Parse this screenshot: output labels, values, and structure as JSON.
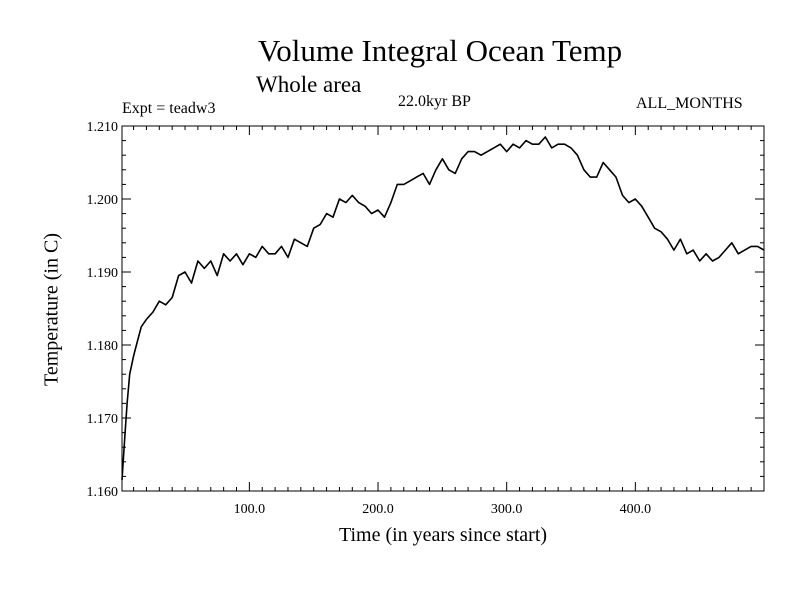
{
  "chart_data": {
    "type": "line",
    "title": "Volume Integral Ocean Temp",
    "subtitle": "Whole area",
    "annotations": {
      "left": "Expt = teadw3",
      "center": "22.0kyr BP",
      "right": "ALL_MONTHS"
    },
    "xlabel": "Time (in years since start)",
    "ylabel": "Temperature (in C)",
    "xlim": [
      1,
      500
    ],
    "ylim": [
      1.16,
      1.21
    ],
    "xticks": [
      100,
      200,
      300,
      400
    ],
    "xtick_labels": [
      "100.0",
      "200.0",
      "300.0",
      "400.0"
    ],
    "yticks": [
      1.16,
      1.17,
      1.18,
      1.19,
      1.2,
      1.21
    ],
    "ytick_labels": [
      "1.160",
      "1.170",
      "1.180",
      "1.190",
      "1.200",
      "1.210"
    ],
    "grid": false,
    "series": [
      {
        "name": "Volume Integral Ocean Temp",
        "color": "#000000",
        "x": [
          1,
          3,
          5,
          7,
          10,
          13,
          16,
          20,
          25,
          30,
          35,
          40,
          45,
          50,
          55,
          60,
          65,
          70,
          75,
          80,
          85,
          90,
          95,
          100,
          105,
          110,
          115,
          120,
          125,
          130,
          135,
          140,
          145,
          150,
          155,
          160,
          165,
          170,
          175,
          180,
          185,
          190,
          195,
          200,
          205,
          210,
          215,
          220,
          225,
          230,
          235,
          240,
          245,
          250,
          255,
          260,
          265,
          270,
          275,
          280,
          285,
          290,
          295,
          300,
          305,
          310,
          315,
          320,
          325,
          330,
          335,
          340,
          345,
          350,
          355,
          360,
          365,
          370,
          375,
          380,
          385,
          390,
          395,
          400,
          405,
          410,
          415,
          420,
          425,
          430,
          435,
          440,
          445,
          450,
          455,
          460,
          465,
          470,
          475,
          480,
          485,
          490,
          495,
          500
        ],
        "values": [
          1.1615,
          1.167,
          1.172,
          1.176,
          1.1785,
          1.1805,
          1.1825,
          1.1835,
          1.1845,
          1.186,
          1.1855,
          1.1865,
          1.1895,
          1.19,
          1.1885,
          1.1915,
          1.1905,
          1.1915,
          1.1895,
          1.1925,
          1.1915,
          1.1925,
          1.191,
          1.1925,
          1.192,
          1.1935,
          1.1925,
          1.1925,
          1.1935,
          1.192,
          1.1945,
          1.194,
          1.1935,
          1.196,
          1.1965,
          1.198,
          1.1975,
          1.2,
          1.1995,
          1.2005,
          1.1995,
          1.199,
          1.198,
          1.1985,
          1.1975,
          1.1995,
          1.202,
          1.202,
          1.2025,
          1.203,
          1.2035,
          1.202,
          1.204,
          1.2055,
          1.204,
          1.2035,
          1.2055,
          1.2065,
          1.2065,
          1.206,
          1.2065,
          1.207,
          1.2075,
          1.2065,
          1.2075,
          1.207,
          1.208,
          1.2075,
          1.2075,
          1.2085,
          1.207,
          1.2075,
          1.2075,
          1.207,
          1.206,
          1.204,
          1.203,
          1.203,
          1.205,
          1.204,
          1.203,
          1.2005,
          1.1995,
          1.2,
          1.199,
          1.1975,
          1.196,
          1.1955,
          1.1945,
          1.193,
          1.1945,
          1.1925,
          1.193,
          1.1915,
          1.1925,
          1.1915,
          1.192,
          1.193,
          1.194,
          1.1925,
          1.193,
          1.1935,
          1.1935,
          1.193
        ]
      }
    ]
  }
}
